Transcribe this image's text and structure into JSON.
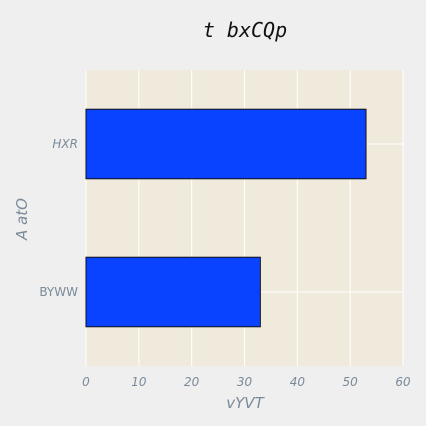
{
  "chart_data": {
    "type": "bar",
    "orientation": "horizontal",
    "title": "t bxCQp",
    "xlabel": "vYVT",
    "ylabel": "A atO",
    "categories": [
      "BYWW",
      "HXR"
    ],
    "values": [
      33,
      53
    ],
    "xlim": [
      0,
      60
    ],
    "xticks": [
      "0",
      "10",
      "20",
      "30",
      "40",
      "50",
      "60"
    ],
    "grid": true,
    "bar_color": "#0a43ff",
    "bar_edge_color": "#111111",
    "plot_background": "#efeadb",
    "figure_background": "#efefef"
  }
}
